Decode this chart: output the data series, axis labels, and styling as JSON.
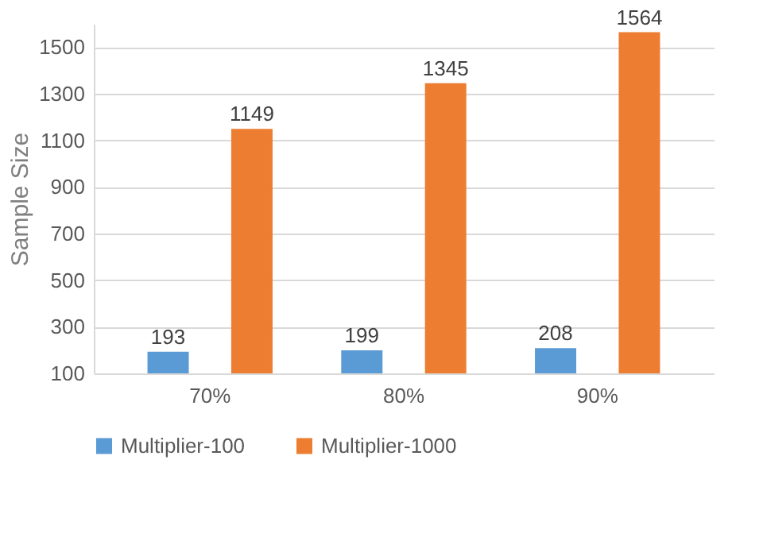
{
  "chart_data": {
    "type": "bar",
    "ylabel": "Sample Size",
    "categories": [
      "70%",
      "80%",
      "90%"
    ],
    "series": [
      {
        "name": "Multiplier-100",
        "color": "#5b9bd5",
        "values": [
          193,
          199,
          208
        ]
      },
      {
        "name": "Multiplier-1000",
        "color": "#ed7d31",
        "values": [
          1149,
          1345,
          1564
        ]
      }
    ],
    "ylim": [
      100,
      1600
    ],
    "yticks": [
      100,
      300,
      500,
      700,
      900,
      1100,
      1300,
      1500
    ],
    "grid": "y",
    "legend": "bottom",
    "data_labels": true
  }
}
